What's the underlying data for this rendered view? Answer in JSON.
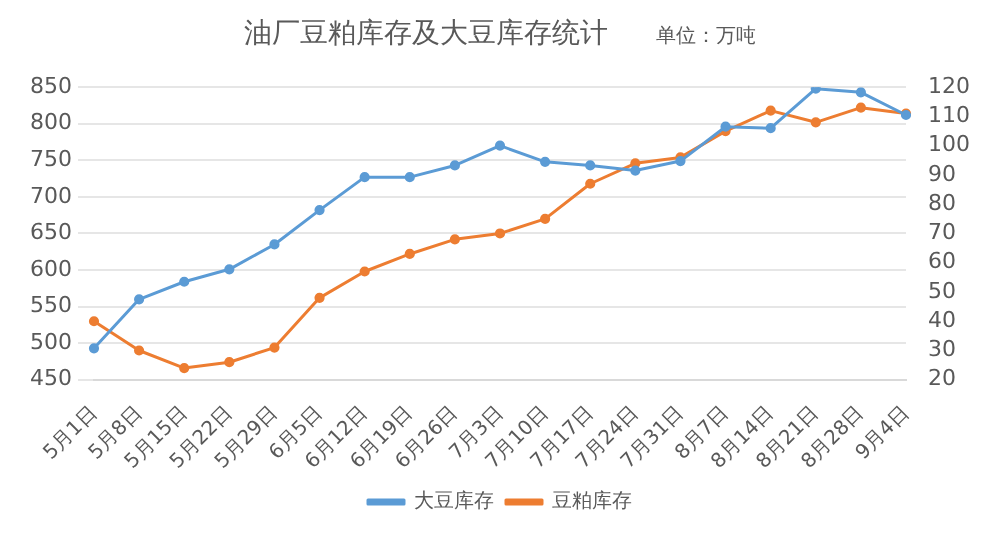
{
  "chart_data": {
    "type": "line",
    "title": "油厂豆粕库存及大豆库存统计",
    "subtitle": "单位：万吨",
    "categories": [
      "5月1日",
      "5月8日",
      "5月15日",
      "5月22日",
      "5月29日",
      "6月5日",
      "6月12日",
      "6月19日",
      "6月26日",
      "7月3日",
      "7月10日",
      "7月17日",
      "7月24日",
      "7月31日",
      "8月7日",
      "8月14日",
      "8月21日",
      "8月28日",
      "9月4日"
    ],
    "series": [
      {
        "name": "大豆库存",
        "color": "#5b9bd5",
        "values": [
          493,
          560,
          584,
          601,
          635,
          682,
          727,
          727,
          743,
          770,
          748,
          743,
          736,
          749,
          796,
          794,
          848,
          843,
          812
        ]
      },
      {
        "name": "豆粕库存",
        "color": "#ed7d31",
        "axis": "y2",
        "values": [
          40,
          30,
          24,
          26,
          31,
          48,
          57,
          63,
          68,
          70,
          75,
          87,
          94,
          96,
          105,
          112,
          108,
          113,
          111
        ]
      }
    ],
    "ylim": [
      450,
      850
    ],
    "yticks": [
      450,
      500,
      550,
      600,
      650,
      700,
      750,
      800,
      850
    ],
    "y2lim": [
      20,
      120
    ],
    "y2ticks": [
      20,
      30,
      40,
      50,
      60,
      70,
      80,
      90,
      100,
      110,
      120
    ],
    "grid": "y",
    "legend": "bottom",
    "marker": "circle",
    "line_style": "solid"
  }
}
